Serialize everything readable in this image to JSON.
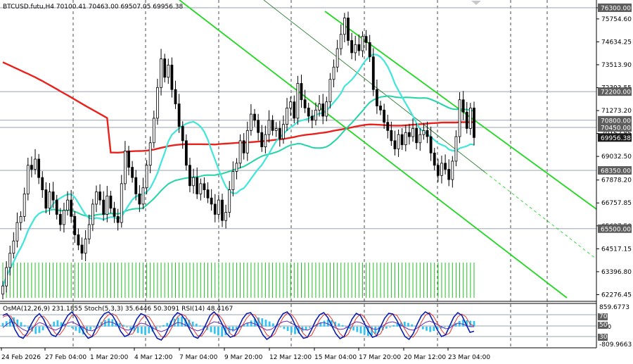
{
  "header": {
    "symbol_line": "BTCUSD.futu,H4  70100.41 70463.00 69507.05 69956.38",
    "indicator_line": "OsMA(12,26,9) 231.1855  Stoch(5,3,3) 35.6446 50.3091  RSI(14) 48.4167"
  },
  "colors": {
    "background": "#ffffff",
    "candle": "#000000",
    "bull_candle_body": "#ffffff",
    "ma_red": "#e8231e",
    "ma_cyan": "#3fe6d9",
    "ma_teal": "#22d4a6",
    "channel_green": "#1fd81f",
    "level_line": "#9aa3b0",
    "volume": "#1fc21f",
    "osma_hist": "#35c4ef",
    "stoch_main": "#0b1fa8",
    "stoch_signal": "#e8231e",
    "rsi": "#6a2fb7",
    "label_box": "#5e5e5e",
    "current_price_box": "#1a1a1a"
  },
  "chart_data": {
    "type": "candlestick",
    "symbol": "BTCUSD.futu",
    "timeframe": "H4",
    "y_axis_ticks": [
      "76300.00",
      "75754.60",
      "74634.25",
      "73513.90",
      "72393.55",
      "71273.20",
      "70152.85",
      "69032.50",
      "67878.20",
      "66757.85",
      "65637.50",
      "64517.15",
      "63396.80",
      "62276.45"
    ],
    "ylim": [
      62120,
      76300
    ],
    "x_axis_ticks": [
      "24 Feb 2026",
      "27 Feb 04:00",
      "1 Mar 20:00",
      "4 Mar 12:00",
      "7 Mar 04:00",
      "9 Mar 20:00",
      "12 Mar 12:00",
      "15 Mar 04:00",
      "17 Mar 20:00",
      "20 Mar 12:00",
      "23 Mar 04:00"
    ],
    "price_labels": [
      {
        "text": "76300.00",
        "value": 76300
      },
      {
        "text": "72200.00",
        "value": 72200
      },
      {
        "text": "70800.00",
        "value": 70800
      },
      {
        "text": "70450.00",
        "value": 70450
      },
      {
        "text": "69956.38",
        "value": 69956.38,
        "current": true
      },
      {
        "text": "68350.00",
        "value": 68350
      },
      {
        "text": "65500.00",
        "value": 65500
      }
    ],
    "horizontal_levels": [
      76300,
      72200,
      70800,
      70450,
      68350,
      65500
    ],
    "close_prices": [
      62700,
      63600,
      64300,
      64900,
      65800,
      66100,
      67200,
      68600,
      68400,
      68900,
      68000,
      67400,
      66500,
      67300,
      66900,
      66200,
      65700,
      66400,
      66900,
      66100,
      65200,
      64700,
      64300,
      65000,
      65700,
      66700,
      67300,
      66900,
      66200,
      67100,
      66500,
      66100,
      65800,
      67700,
      69300,
      68500,
      68000,
      67200,
      66700,
      67500,
      68600,
      69700,
      70900,
      72400,
      73800,
      72900,
      73500,
      72300,
      71600,
      70500,
      69800,
      68600,
      67600,
      68000,
      67200,
      67700,
      67400,
      67000,
      66700,
      66200,
      66900,
      65900,
      66300,
      67400,
      68300,
      68700,
      69800,
      69200,
      70300,
      71100,
      70800,
      70200,
      69500,
      70100,
      70800,
      70300,
      70400,
      69900,
      70600,
      71400,
      71700,
      70900,
      72600,
      71800,
      71400,
      71000,
      70800,
      71300,
      71600,
      71000,
      71700,
      72800,
      73400,
      74300,
      75000,
      75800,
      74700,
      74100,
      74500,
      74200,
      74900,
      74600,
      73900,
      72300,
      71500,
      71300,
      70700,
      70300,
      69800,
      69400,
      70100,
      69600,
      70200,
      70000,
      70400,
      69700,
      70100,
      70300,
      70000,
      69200,
      68600,
      68100,
      68700,
      68400,
      67900,
      68800,
      70000,
      71800,
      71200,
      70400,
      71400,
      69956
    ]
  },
  "indicators": {
    "osma_values": [
      150,
      220,
      310,
      380,
      290,
      180,
      60,
      -80,
      -200,
      -300,
      -260,
      -150,
      -40,
      90,
      200,
      260,
      180,
      120,
      40,
      -60,
      -170,
      -260,
      -320,
      -250,
      -140,
      -30,
      80,
      190,
      270,
      330,
      300,
      230,
      150,
      70,
      -20,
      -110,
      -190,
      -260,
      -300,
      -340,
      -280,
      -210,
      -120,
      -30,
      60,
      150,
      240,
      320,
      380,
      410,
      350,
      280,
      200,
      120,
      40,
      -50,
      -140,
      -230,
      -300,
      -360,
      -400,
      -350,
      -280,
      -200,
      -110,
      -20,
      70,
      160,
      250,
      320,
      370,
      340,
      280,
      210,
      130,
      60,
      -20,
      -100,
      -180,
      -250,
      -310,
      -280,
      -210,
      -130,
      -50,
      30,
      110,
      180,
      240,
      290,
      260,
      200,
      130,
      60,
      -20,
      -90,
      -160,
      -220,
      -280,
      -330,
      -380,
      -350,
      -290,
      -220,
      -150,
      -80,
      -10,
      60,
      120,
      170,
      200,
      150,
      90,
      30,
      -40,
      -110,
      -170,
      -220,
      -180,
      -130,
      -80,
      -30,
      20,
      80,
      150,
      230,
      280,
      260,
      240,
      231
    ],
    "osma_ylim": [
      -809.9663,
      859.6773
    ],
    "stoch_main": [
      80,
      85,
      70,
      40,
      20,
      15,
      30,
      55,
      75,
      85,
      70,
      45,
      25,
      20,
      35,
      60,
      80,
      90,
      75,
      50,
      30,
      15,
      20,
      45,
      70,
      85,
      90,
      80,
      60,
      35,
      20,
      25,
      45,
      70,
      85,
      80,
      60,
      35,
      15,
      10,
      25,
      50,
      75,
      88,
      82,
      65,
      40,
      20,
      15,
      30,
      55,
      80,
      90,
      78,
      55,
      30,
      18,
      22,
      45,
      70,
      85,
      88,
      72,
      48,
      25,
      12,
      20,
      42,
      68,
      85,
      90,
      76,
      52,
      30,
      15,
      18,
      40,
      65,
      82,
      88,
      74,
      50,
      28,
      14,
      20,
      45,
      70,
      86,
      80,
      58,
      35,
      18,
      22,
      48,
      72,
      86,
      84,
      66,
      42,
      20,
      12,
      28,
      55,
      78,
      90,
      84,
      62,
      38,
      20,
      25,
      50,
      75,
      88,
      80,
      56,
      32,
      35
    ],
    "stoch_signal": [
      75,
      80,
      78,
      60,
      40,
      25,
      22,
      35,
      55,
      75,
      78,
      65,
      45,
      28,
      25,
      40,
      62,
      80,
      82,
      68,
      48,
      28,
      20,
      28,
      48,
      70,
      82,
      85,
      78,
      58,
      38,
      25,
      28,
      48,
      68,
      80,
      76,
      58,
      36,
      20,
      18,
      32,
      55,
      76,
      84,
      78,
      60,
      38,
      22,
      22,
      38,
      62,
      82,
      84,
      70,
      48,
      28,
      20,
      30,
      52,
      72,
      84,
      82,
      66,
      44,
      25,
      18,
      28,
      52,
      74,
      86,
      84,
      70,
      48,
      28,
      18,
      24,
      46,
      68,
      82,
      84,
      70,
      48,
      28,
      18,
      26,
      50,
      72,
      84,
      76,
      56,
      36,
      22,
      28,
      52,
      74,
      84,
      80,
      62,
      40,
      22,
      18,
      34,
      60,
      80,
      88,
      78,
      58,
      38,
      24,
      30,
      54,
      76,
      84,
      76,
      56,
      50
    ],
    "rsi_values": [
      45,
      55,
      62,
      58,
      48,
      40,
      35,
      42,
      52,
      60,
      56,
      48,
      42,
      38,
      44,
      52,
      58,
      62,
      56,
      50,
      44,
      38,
      36,
      42,
      50,
      58,
      62,
      60,
      54,
      46,
      40,
      38,
      44,
      52,
      58,
      56,
      50,
      44,
      38,
      34,
      38,
      46,
      54,
      60,
      58,
      52,
      46,
      40,
      36,
      40,
      48,
      56,
      62,
      60,
      54,
      46,
      40,
      38,
      44,
      52,
      58,
      60,
      56,
      50,
      44,
      38,
      40,
      48,
      56,
      62,
      64,
      58,
      52,
      46,
      40,
      38,
      44,
      52,
      58,
      60,
      56,
      50,
      44,
      40,
      42,
      48,
      56,
      62,
      60,
      54,
      48,
      42,
      40,
      46,
      54,
      60,
      62,
      58,
      52,
      46,
      40,
      38,
      44,
      52,
      60,
      64,
      60,
      54,
      48,
      42,
      44,
      52,
      58,
      56,
      52,
      48,
      48
    ],
    "osma_ticks": [
      "859.6773",
      "500",
      "-809.9663"
    ],
    "rsi_levels": [
      "70",
      "50",
      "30"
    ]
  }
}
